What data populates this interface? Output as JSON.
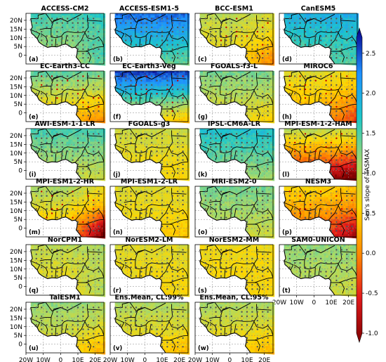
{
  "chart_data": {
    "type": "heatmap",
    "colorbar": {
      "label": "Sen's slope of TASMAX",
      "range": [
        -1.0,
        2.7
      ],
      "ticks": [
        "2.5",
        "2.0",
        "1.5",
        "1.0",
        "0.5",
        "0.0",
        "-0.5",
        "-1.0"
      ],
      "tick_values": [
        2.5,
        2.0,
        1.5,
        1.0,
        0.5,
        0.0,
        -0.5,
        -1.0
      ],
      "colors": [
        "#7f0000",
        "#e31a1c",
        "#ff8c00",
        "#ffd700",
        "#a6d96a",
        "#1ec8c8",
        "#1e90ff",
        "#08008a"
      ]
    },
    "x_ticks": [
      "20W",
      "10W",
      "0",
      "10E",
      "20E"
    ],
    "y_ticks": [
      "20N",
      "15N",
      "10N",
      "5N",
      "0"
    ],
    "grid": "dashed",
    "panels": [
      {
        "id": "a",
        "label": "(a)",
        "title": "ACCESS-CM2",
        "north": 1.5,
        "south": 1.0,
        "east_anom": 0.3,
        "rain": false
      },
      {
        "id": "b",
        "label": "(b)",
        "title": "ACCESS-ESM1-5",
        "north": 2.3,
        "south": 1.3,
        "east_anom": 0.0,
        "rain": false
      },
      {
        "id": "c",
        "label": "(c)",
        "title": "BCC-ESM1",
        "north": 1.0,
        "south": 0.6,
        "east_anom": -0.4,
        "rain": true
      },
      {
        "id": "d",
        "label": "(d)",
        "title": "CanESM5",
        "north": 1.9,
        "south": 1.3,
        "east_anom": 0.1,
        "rain": false
      },
      {
        "id": "e",
        "label": "(e)",
        "title": "EC-Earth3-CC",
        "north": 1.4,
        "south": 0.3,
        "east_anom": -0.2,
        "rain": true
      },
      {
        "id": "f",
        "label": "(f)",
        "title": "EC-Earth3-Veg",
        "north": 2.5,
        "south": 0.6,
        "east_anom": -0.2,
        "rain": true
      },
      {
        "id": "g",
        "label": "(g)",
        "title": "FGOALS-f3-L",
        "north": 1.3,
        "south": 0.7,
        "east_anom": -0.1,
        "rain": false
      },
      {
        "id": "h",
        "label": "(h)",
        "title": "MIROC6",
        "north": 0.8,
        "south": 0.2,
        "east_anom": -0.4,
        "rain": true
      },
      {
        "id": "i",
        "label": "(i)",
        "title": "AWI-ESM-1-1-LR",
        "north": 1.5,
        "south": 0.9,
        "east_anom": 0.0,
        "rain": false
      },
      {
        "id": "j",
        "label": "(j)",
        "title": "FGOALS-g3",
        "north": 0.9,
        "south": 0.6,
        "east_anom": 0.0,
        "rain": false
      },
      {
        "id": "k",
        "label": "(k)",
        "title": "IPSL-CM6A-LR",
        "north": 1.7,
        "south": 1.1,
        "east_anom": 0.0,
        "rain": false
      },
      {
        "id": "l",
        "label": "(l)",
        "title": "MPI-ESM-1-2-HAM",
        "north": 1.0,
        "south": -0.8,
        "east_anom": -0.3,
        "rain": true
      },
      {
        "id": "m",
        "label": "(m)",
        "title": "MPI-ESM1-2-HR",
        "north": 1.1,
        "south": 0.3,
        "east_anom": -1.0,
        "rain": true
      },
      {
        "id": "n",
        "label": "(n)",
        "title": "MPI-ESM1-2-LR",
        "north": 0.8,
        "south": 0.6,
        "east_anom": -0.1,
        "rain": false
      },
      {
        "id": "o",
        "label": "(o)",
        "title": "MRI-ESM2-0",
        "north": 1.3,
        "south": 0.9,
        "east_anom": 0.0,
        "rain": false
      },
      {
        "id": "p",
        "label": "(p)",
        "title": "NESM3",
        "north": 0.6,
        "south": -0.2,
        "east_anom": -0.5,
        "rain": true
      },
      {
        "id": "q",
        "label": "(q)",
        "title": "NorCPM1",
        "north": 1.0,
        "south": 0.6,
        "east_anom": 0.3,
        "rain": false
      },
      {
        "id": "r",
        "label": "(r)",
        "title": "NorESM2-LM",
        "north": 0.8,
        "south": 0.6,
        "east_anom": 0.0,
        "rain": false
      },
      {
        "id": "s",
        "label": "(s)",
        "title": "NorESM2-MM",
        "north": 0.7,
        "south": 0.6,
        "east_anom": 0.0,
        "rain": false
      },
      {
        "id": "t",
        "label": "(t)",
        "title": "SAM0-UNICON",
        "north": 1.2,
        "south": 0.9,
        "east_anom": 0.0,
        "rain": false
      },
      {
        "id": "u",
        "label": "(u)",
        "title": "TaiESM1",
        "north": 1.2,
        "south": 0.7,
        "east_anom": -0.3,
        "rain": false
      },
      {
        "id": "v",
        "label": "(v)",
        "title": "Ens.Mean, CL:99%",
        "north": 1.1,
        "south": 0.5,
        "east_anom": -0.1,
        "rain": false
      },
      {
        "id": "w",
        "label": "(w)",
        "title": "Ens.Mean, CL:95%",
        "north": 1.1,
        "south": 0.5,
        "east_anom": -0.1,
        "rain": false
      }
    ]
  }
}
